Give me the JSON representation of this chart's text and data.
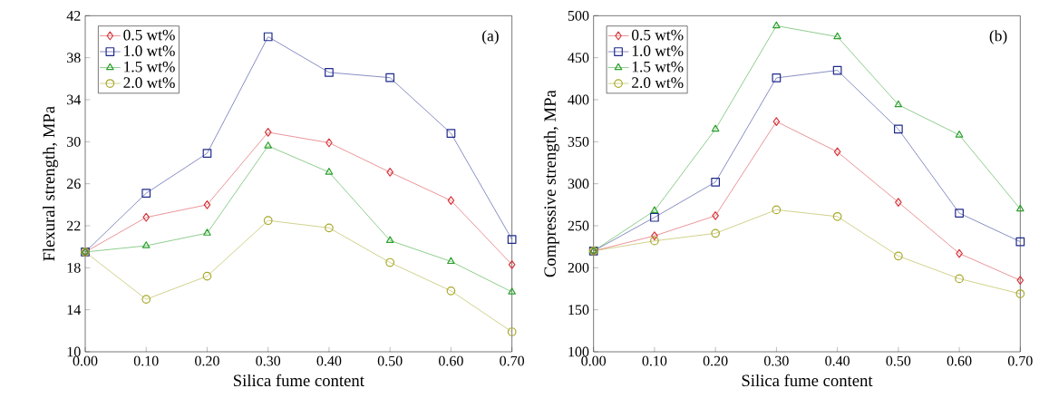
{
  "chart_data": [
    {
      "type": "line",
      "xlabel": "Silica fume content",
      "ylabel": "Flexural strength, MPa",
      "annotations": [
        "(a)"
      ],
      "x": [
        0,
        0.1,
        0.2,
        0.3,
        0.4,
        0.5,
        0.6,
        0.7
      ],
      "series": [
        {
          "name": "0.5 wt%",
          "color": "#d8363c",
          "marker": "diamond",
          "values": [
            19.5,
            22.8,
            24.0,
            30.9,
            29.9,
            27.1,
            24.4,
            18.3
          ]
        },
        {
          "name": "1.0 wt%",
          "color": "#1f2a8c",
          "marker": "square",
          "values": [
            19.5,
            25.1,
            28.9,
            40.0,
            36.6,
            36.1,
            30.8,
            20.7
          ]
        },
        {
          "name": "1.5 wt%",
          "color": "#2ca02c",
          "marker": "triangle",
          "values": [
            19.5,
            20.1,
            21.3,
            29.6,
            27.1,
            20.6,
            18.6,
            15.7
          ]
        },
        {
          "name": "2.0 wt%",
          "color": "#a8a82a",
          "marker": "circle",
          "values": [
            19.5,
            15.0,
            17.2,
            22.5,
            21.8,
            18.5,
            15.8,
            11.9
          ]
        }
      ],
      "xlim": [
        0,
        0.7
      ],
      "ylim": [
        10,
        42
      ],
      "xticks": [
        {
          "value": 0,
          "label": "0.00"
        },
        {
          "value": 0.1,
          "label": "0.10"
        },
        {
          "value": 0.2,
          "label": "0.20"
        },
        {
          "value": 0.3,
          "label": "0.30"
        },
        {
          "value": 0.4,
          "label": "0.40"
        },
        {
          "value": 0.5,
          "label": "0.50"
        },
        {
          "value": 0.6,
          "label": "0.60"
        },
        {
          "value": 0.7,
          "label": "0.70"
        }
      ],
      "yticks": [
        10,
        14,
        18,
        22,
        26,
        30,
        34,
        38,
        42
      ],
      "legend": "top left",
      "grid": false
    },
    {
      "type": "line",
      "xlabel": "Silica fume content",
      "ylabel": "Compressive strength, MPa",
      "annotations": [
        "(b)"
      ],
      "x": [
        0,
        0.1,
        0.2,
        0.3,
        0.4,
        0.5,
        0.6,
        0.7
      ],
      "series": [
        {
          "name": "0.5 wt%",
          "color": "#d8363c",
          "marker": "diamond",
          "values": [
            220,
            238,
            262,
            374,
            338,
            278,
            217,
            185
          ]
        },
        {
          "name": "1.0 wt%",
          "color": "#1f2a8c",
          "marker": "square",
          "values": [
            220,
            260,
            302,
            426,
            435,
            365,
            265,
            231
          ]
        },
        {
          "name": "1.5 wt%",
          "color": "#2ca02c",
          "marker": "triangle",
          "values": [
            220,
            268,
            365,
            488,
            475,
            394,
            358,
            270
          ]
        },
        {
          "name": "2.0 wt%",
          "color": "#a8a82a",
          "marker": "circle",
          "values": [
            220,
            232,
            241,
            269,
            261,
            214,
            187,
            169
          ]
        }
      ],
      "xlim": [
        0,
        0.7
      ],
      "ylim": [
        100,
        500
      ],
      "xticks": [
        {
          "value": 0,
          "label": "0.00"
        },
        {
          "value": 0.1,
          "label": "0.10"
        },
        {
          "value": 0.2,
          "label": "0.20"
        },
        {
          "value": 0.3,
          "label": "0.30"
        },
        {
          "value": 0.4,
          "label": "0.40"
        },
        {
          "value": 0.5,
          "label": "0.50"
        },
        {
          "value": 0.6,
          "label": "0.60"
        },
        {
          "value": 0.7,
          "label": "0.70"
        }
      ],
      "yticks": [
        100,
        150,
        200,
        250,
        300,
        350,
        400,
        450,
        500
      ],
      "legend": "top left",
      "grid": false
    }
  ]
}
